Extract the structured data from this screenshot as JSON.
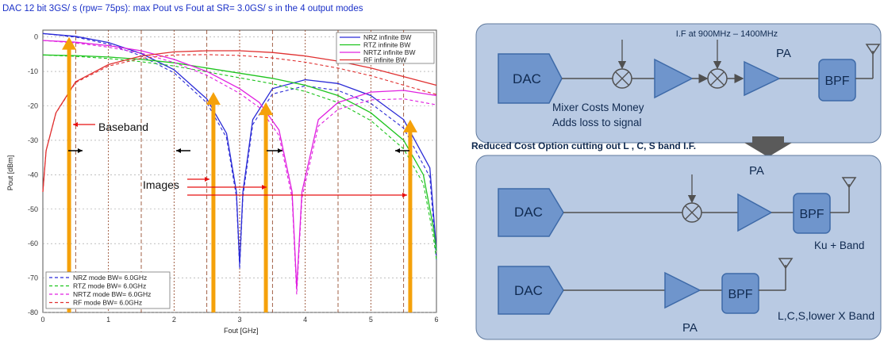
{
  "chart_data": {
    "type": "line",
    "title": "DAC 12 bit 3GS/ s (rpw= 75ps): max Pout vs Fout at SR= 3.0GS/ s in the 4 output modes",
    "xlabel": "Fout [GHz]",
    "ylabel": "Pout [dBm]",
    "xlim": [
      0,
      6
    ],
    "ylim": [
      -80,
      2
    ],
    "x_ticks": [
      "0",
      "1",
      "2",
      "3",
      "4",
      "5",
      "6"
    ],
    "y_ticks": [
      "0",
      "-10",
      "-20",
      "-30",
      "-40",
      "-50",
      "-60",
      "-70",
      "-80"
    ],
    "grid": true,
    "legend_top": [
      "NRZ infinite BW",
      "RTZ infinite BW",
      "NRTZ infinite BW",
      "RF infinite BW"
    ],
    "legend_bottom": [
      "NRZ mode BW= 6.0GHz",
      "RTZ mode BW= 6.0GHz",
      "NRTZ mode BW= 6.0GHz",
      "RF mode BW= 6.0GHz"
    ],
    "colors": {
      "NRZ": "#2b2bd6",
      "RTZ": "#1ec41e",
      "NRTZ": "#e020e0",
      "RF": "#e03030",
      "grid": "#8b3a1a",
      "signal": "#f5a10a",
      "annot": "#e81010"
    },
    "series": [
      {
        "name": "NRZ infinite BW",
        "x": [
          0,
          0.5,
          1,
          1.5,
          2,
          2.5,
          2.8,
          2.95,
          3,
          3.05,
          3.2,
          3.5,
          4,
          4.5,
          5,
          5.5,
          5.9,
          6
        ],
        "y": [
          1,
          0.2,
          -1.6,
          -4.8,
          -9.5,
          -18,
          -28,
          -45,
          -66,
          -45,
          -24,
          -15,
          -12.4,
          -13.5,
          -17,
          -24,
          -38,
          -62
        ]
      },
      {
        "name": "RTZ infinite BW",
        "x": [
          0,
          0.5,
          1,
          1.5,
          2,
          2.5,
          3,
          3.5,
          4,
          4.5,
          5,
          5.5,
          5.8,
          5.95,
          6
        ],
        "y": [
          -5.2,
          -5.4,
          -5.8,
          -6.5,
          -7.5,
          -9,
          -10.5,
          -12,
          -14,
          -17,
          -22,
          -30,
          -40,
          -55,
          -62
        ]
      },
      {
        "name": "NRTZ infinite BW",
        "x": [
          0,
          0.5,
          1,
          1.5,
          2,
          2.5,
          3,
          3.3,
          3.6,
          3.8,
          3.87,
          3.95,
          4.2,
          4.5,
          5,
          5.5,
          6
        ],
        "y": [
          -1,
          -1.5,
          -2.5,
          -4,
          -6.5,
          -10,
          -15,
          -19,
          -27,
          -45,
          -73,
          -45,
          -24,
          -19,
          -16,
          -15.5,
          -17
        ]
      },
      {
        "name": "RF infinite BW",
        "x": [
          0,
          0.05,
          0.2,
          0.5,
          1,
          1.5,
          2,
          2.5,
          3,
          3.5,
          4,
          4.5,
          5,
          5.5,
          6
        ],
        "y": [
          -45,
          -33,
          -22,
          -13,
          -8,
          -5.5,
          -4.3,
          -4,
          -4,
          -4.5,
          -5.5,
          -7,
          -9,
          -11.5,
          -14
        ]
      }
    ],
    "annotations": {
      "baseband": "Baseband",
      "images": "Images"
    },
    "signal_x": [
      0.4,
      2.6,
      3.4,
      5.6
    ],
    "signal_top": [
      0,
      -16,
      -19,
      -24
    ]
  },
  "diagram": {
    "top_panel": {
      "dac": "DAC",
      "if_label": "I.F at 900MHz – 1400MHz",
      "pa": "PA",
      "bpf": "BPF",
      "mixer_note_line1": "Mixer Costs Money",
      "mixer_note_line2": "Adds loss to signal"
    },
    "middle_caption": "Reduced Cost Option cutting out L , C, S band I.F.",
    "bottom_panel": {
      "pa_top": "PA",
      "dac1": "DAC",
      "bpf1": "BPF",
      "ku_band": "Ku  + Band",
      "dac2": "DAC",
      "bpf2": "BPF",
      "pa_bottom": "PA",
      "lcs_band": "L,C,S,lower X Band"
    },
    "colors": {
      "panel": "#b9cae3",
      "box": "#6f95cc",
      "box_stroke": "#3e6aa8",
      "text": "#17365d",
      "arrow": "#505050"
    }
  }
}
